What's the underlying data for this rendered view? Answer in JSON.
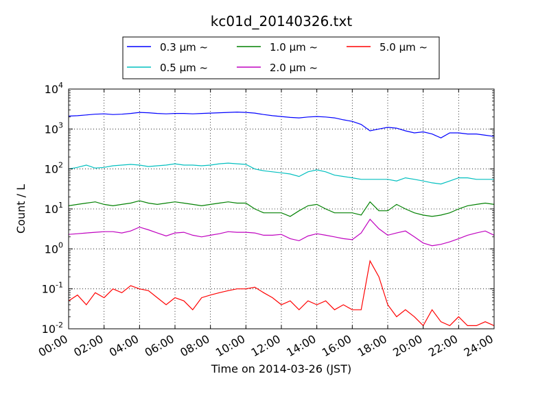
{
  "chart_data": {
    "type": "line",
    "title": "kc01d_20140326.txt",
    "xlabel": "Time on 2014-03-26 (JST)",
    "ylabel": "Count / L",
    "yscale": "log",
    "ylim": [
      0.01,
      10000
    ],
    "xlim": [
      "00:00",
      "24:00"
    ],
    "grid": true,
    "legend_position": "top-center",
    "x_tick_labels": [
      "00:00",
      "02:00",
      "04:00",
      "06:00",
      "08:00",
      "10:00",
      "12:00",
      "14:00",
      "16:00",
      "18:00",
      "20:00",
      "22:00",
      "24:00"
    ],
    "y_tick_labels": [
      {
        "value": 0.01,
        "base": "10",
        "exp": "-2"
      },
      {
        "value": 0.1,
        "base": "10",
        "exp": "-1"
      },
      {
        "value": 1,
        "base": "10",
        "exp": "0"
      },
      {
        "value": 10,
        "base": "10",
        "exp": "1"
      },
      {
        "value": 100,
        "base": "10",
        "exp": "2"
      },
      {
        "value": 1000,
        "base": "10",
        "exp": "3"
      },
      {
        "value": 10000,
        "base": "10",
        "exp": "4"
      }
    ],
    "x": [
      "00:00",
      "00:30",
      "01:00",
      "01:30",
      "02:00",
      "02:30",
      "03:00",
      "03:30",
      "04:00",
      "04:30",
      "05:00",
      "05:30",
      "06:00",
      "06:30",
      "07:00",
      "07:30",
      "08:00",
      "08:30",
      "09:00",
      "09:30",
      "10:00",
      "10:30",
      "11:00",
      "11:30",
      "12:00",
      "12:30",
      "13:00",
      "13:30",
      "14:00",
      "14:30",
      "15:00",
      "15:30",
      "16:00",
      "16:30",
      "17:00",
      "17:30",
      "18:00",
      "18:30",
      "19:00",
      "19:30",
      "20:00",
      "20:30",
      "21:00",
      "21:30",
      "22:00",
      "22:30",
      "23:00",
      "23:30",
      "24:00"
    ],
    "series": [
      {
        "name": "0.3 μm ~",
        "color": "#0000ff",
        "values": [
          2100,
          2150,
          2250,
          2350,
          2400,
          2300,
          2350,
          2450,
          2600,
          2550,
          2450,
          2400,
          2450,
          2450,
          2400,
          2450,
          2500,
          2550,
          2600,
          2650,
          2600,
          2500,
          2300,
          2150,
          2050,
          1950,
          1900,
          2000,
          2050,
          2000,
          1900,
          1700,
          1550,
          1300,
          900,
          1000,
          1100,
          1050,
          900,
          800,
          850,
          750,
          600,
          800,
          800,
          750,
          750,
          700,
          650
        ]
      },
      {
        "name": "0.5 μm ~",
        "color": "#00bfbf",
        "values": [
          100,
          110,
          125,
          105,
          110,
          120,
          125,
          130,
          125,
          115,
          120,
          125,
          135,
          125,
          125,
          120,
          125,
          135,
          140,
          135,
          130,
          100,
          90,
          85,
          80,
          75,
          65,
          85,
          95,
          85,
          70,
          65,
          60,
          55,
          55,
          55,
          55,
          50,
          60,
          55,
          50,
          45,
          42,
          50,
          60,
          60,
          55,
          55,
          55
        ]
      },
      {
        "name": "1.0 μm ~",
        "color": "#008000",
        "values": [
          12,
          13,
          14,
          15,
          13,
          12,
          13,
          14,
          16,
          14,
          13,
          14,
          15,
          14,
          13,
          12,
          13,
          14,
          15,
          14,
          14,
          10,
          8,
          8,
          8,
          6.5,
          9,
          12,
          13,
          10,
          8,
          8,
          8,
          7,
          15,
          9,
          9,
          13,
          10,
          8,
          7,
          6.5,
          7,
          8,
          10,
          12,
          13,
          14,
          13
        ]
      },
      {
        "name": "2.0 μm ~",
        "color": "#bf00bf",
        "values": [
          2.3,
          2.4,
          2.5,
          2.6,
          2.7,
          2.7,
          2.5,
          2.8,
          3.5,
          3.0,
          2.5,
          2.1,
          2.5,
          2.6,
          2.2,
          2.0,
          2.2,
          2.4,
          2.7,
          2.6,
          2.6,
          2.5,
          2.2,
          2.2,
          2.3,
          1.8,
          1.6,
          2.1,
          2.4,
          2.2,
          2.0,
          1.8,
          1.7,
          2.5,
          5.5,
          3.2,
          2.2,
          2.5,
          2.8,
          2.0,
          1.4,
          1.2,
          1.3,
          1.5,
          1.8,
          2.2,
          2.5,
          2.8,
          2.2
        ]
      },
      {
        "name": "5.0 μm ~",
        "color": "#ff0000",
        "values": [
          0.05,
          0.07,
          0.04,
          0.08,
          0.06,
          0.1,
          0.08,
          0.12,
          0.1,
          0.09,
          0.06,
          0.04,
          0.06,
          0.05,
          0.03,
          0.06,
          0.07,
          0.08,
          0.09,
          0.1,
          0.1,
          0.11,
          0.08,
          0.06,
          0.04,
          0.05,
          0.03,
          0.05,
          0.04,
          0.05,
          0.03,
          0.04,
          0.03,
          0.03,
          0.5,
          0.2,
          0.04,
          0.02,
          0.03,
          0.02,
          0.012,
          0.03,
          0.015,
          0.012,
          0.02,
          0.012,
          0.012,
          0.015,
          0.012
        ]
      }
    ]
  }
}
